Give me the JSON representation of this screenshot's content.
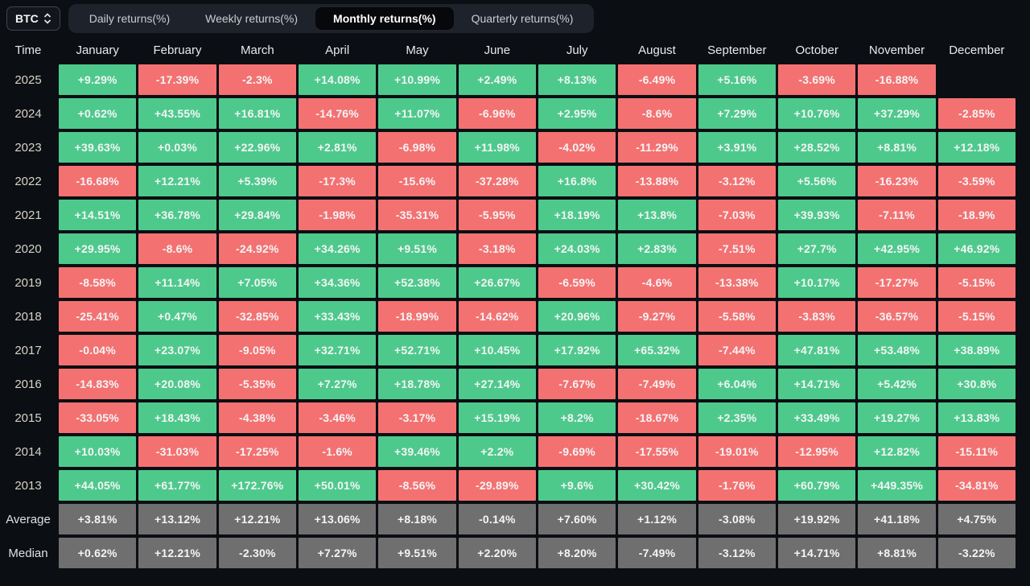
{
  "selector": {
    "label": "BTC"
  },
  "tabs": {
    "active_index": 2,
    "items": [
      {
        "id": "daily",
        "label": "Daily returns(%)"
      },
      {
        "id": "weekly",
        "label": "Weekly returns(%)"
      },
      {
        "id": "monthly",
        "label": "Monthly returns(%)"
      },
      {
        "id": "quarterly",
        "label": "Quarterly returns(%)"
      }
    ]
  },
  "colors": {
    "background": "#0b0e13",
    "positive": "#4ec98c",
    "negative": "#f47171",
    "neutral": "#6f6f6f"
  },
  "chart_data": {
    "type": "heatmap",
    "title": "Monthly returns(%)",
    "time_header": "Time",
    "months": [
      "January",
      "February",
      "March",
      "April",
      "May",
      "June",
      "July",
      "August",
      "September",
      "October",
      "November",
      "December"
    ],
    "rows": [
      {
        "label": "2025",
        "type": "year",
        "cells": [
          [
            "+9.29%",
            "g"
          ],
          [
            "-17.39%",
            "r"
          ],
          [
            "-2.3%",
            "r"
          ],
          [
            "+14.08%",
            "g"
          ],
          [
            "+10.99%",
            "g"
          ],
          [
            "+2.49%",
            "g"
          ],
          [
            "+8.13%",
            "g"
          ],
          [
            "-6.49%",
            "r"
          ],
          [
            "+5.16%",
            "g"
          ],
          [
            "-3.69%",
            "r"
          ],
          [
            "-16.88%",
            "r"
          ],
          null
        ]
      },
      {
        "label": "2024",
        "type": "year",
        "cells": [
          [
            "+0.62%",
            "g"
          ],
          [
            "+43.55%",
            "g"
          ],
          [
            "+16.81%",
            "g"
          ],
          [
            "-14.76%",
            "r"
          ],
          [
            "+11.07%",
            "g"
          ],
          [
            "-6.96%",
            "r"
          ],
          [
            "+2.95%",
            "g"
          ],
          [
            "-8.6%",
            "r"
          ],
          [
            "+7.29%",
            "g"
          ],
          [
            "+10.76%",
            "g"
          ],
          [
            "+37.29%",
            "g"
          ],
          [
            "-2.85%",
            "r"
          ]
        ]
      },
      {
        "label": "2023",
        "type": "year",
        "cells": [
          [
            "+39.63%",
            "g"
          ],
          [
            "+0.03%",
            "g"
          ],
          [
            "+22.96%",
            "g"
          ],
          [
            "+2.81%",
            "g"
          ],
          [
            "-6.98%",
            "r"
          ],
          [
            "+11.98%",
            "g"
          ],
          [
            "-4.02%",
            "r"
          ],
          [
            "-11.29%",
            "r"
          ],
          [
            "+3.91%",
            "g"
          ],
          [
            "+28.52%",
            "g"
          ],
          [
            "+8.81%",
            "g"
          ],
          [
            "+12.18%",
            "g"
          ]
        ]
      },
      {
        "label": "2022",
        "type": "year",
        "cells": [
          [
            "-16.68%",
            "r"
          ],
          [
            "+12.21%",
            "g"
          ],
          [
            "+5.39%",
            "g"
          ],
          [
            "-17.3%",
            "r"
          ],
          [
            "-15.6%",
            "r"
          ],
          [
            "-37.28%",
            "r"
          ],
          [
            "+16.8%",
            "g"
          ],
          [
            "-13.88%",
            "r"
          ],
          [
            "-3.12%",
            "r"
          ],
          [
            "+5.56%",
            "g"
          ],
          [
            "-16.23%",
            "r"
          ],
          [
            "-3.59%",
            "r"
          ]
        ]
      },
      {
        "label": "2021",
        "type": "year",
        "cells": [
          [
            "+14.51%",
            "g"
          ],
          [
            "+36.78%",
            "g"
          ],
          [
            "+29.84%",
            "g"
          ],
          [
            "-1.98%",
            "r"
          ],
          [
            "-35.31%",
            "r"
          ],
          [
            "-5.95%",
            "r"
          ],
          [
            "+18.19%",
            "g"
          ],
          [
            "+13.8%",
            "g"
          ],
          [
            "-7.03%",
            "r"
          ],
          [
            "+39.93%",
            "g"
          ],
          [
            "-7.11%",
            "r"
          ],
          [
            "-18.9%",
            "r"
          ]
        ]
      },
      {
        "label": "2020",
        "type": "year",
        "cells": [
          [
            "+29.95%",
            "g"
          ],
          [
            "-8.6%",
            "r"
          ],
          [
            "-24.92%",
            "r"
          ],
          [
            "+34.26%",
            "g"
          ],
          [
            "+9.51%",
            "g"
          ],
          [
            "-3.18%",
            "r"
          ],
          [
            "+24.03%",
            "g"
          ],
          [
            "+2.83%",
            "g"
          ],
          [
            "-7.51%",
            "r"
          ],
          [
            "+27.7%",
            "g"
          ],
          [
            "+42.95%",
            "g"
          ],
          [
            "+46.92%",
            "g"
          ]
        ]
      },
      {
        "label": "2019",
        "type": "year",
        "cells": [
          [
            "-8.58%",
            "r"
          ],
          [
            "+11.14%",
            "g"
          ],
          [
            "+7.05%",
            "g"
          ],
          [
            "+34.36%",
            "g"
          ],
          [
            "+52.38%",
            "g"
          ],
          [
            "+26.67%",
            "g"
          ],
          [
            "-6.59%",
            "r"
          ],
          [
            "-4.6%",
            "r"
          ],
          [
            "-13.38%",
            "r"
          ],
          [
            "+10.17%",
            "g"
          ],
          [
            "-17.27%",
            "r"
          ],
          [
            "-5.15%",
            "r"
          ]
        ]
      },
      {
        "label": "2018",
        "type": "year",
        "cells": [
          [
            "-25.41%",
            "r"
          ],
          [
            "+0.47%",
            "g"
          ],
          [
            "-32.85%",
            "r"
          ],
          [
            "+33.43%",
            "g"
          ],
          [
            "-18.99%",
            "r"
          ],
          [
            "-14.62%",
            "r"
          ],
          [
            "+20.96%",
            "g"
          ],
          [
            "-9.27%",
            "r"
          ],
          [
            "-5.58%",
            "r"
          ],
          [
            "-3.83%",
            "r"
          ],
          [
            "-36.57%",
            "r"
          ],
          [
            "-5.15%",
            "r"
          ]
        ]
      },
      {
        "label": "2017",
        "type": "year",
        "cells": [
          [
            "-0.04%",
            "r"
          ],
          [
            "+23.07%",
            "g"
          ],
          [
            "-9.05%",
            "r"
          ],
          [
            "+32.71%",
            "g"
          ],
          [
            "+52.71%",
            "g"
          ],
          [
            "+10.45%",
            "g"
          ],
          [
            "+17.92%",
            "g"
          ],
          [
            "+65.32%",
            "g"
          ],
          [
            "-7.44%",
            "r"
          ],
          [
            "+47.81%",
            "g"
          ],
          [
            "+53.48%",
            "g"
          ],
          [
            "+38.89%",
            "g"
          ]
        ]
      },
      {
        "label": "2016",
        "type": "year",
        "cells": [
          [
            "-14.83%",
            "r"
          ],
          [
            "+20.08%",
            "g"
          ],
          [
            "-5.35%",
            "r"
          ],
          [
            "+7.27%",
            "g"
          ],
          [
            "+18.78%",
            "g"
          ],
          [
            "+27.14%",
            "g"
          ],
          [
            "-7.67%",
            "r"
          ],
          [
            "-7.49%",
            "r"
          ],
          [
            "+6.04%",
            "g"
          ],
          [
            "+14.71%",
            "g"
          ],
          [
            "+5.42%",
            "g"
          ],
          [
            "+30.8%",
            "g"
          ]
        ]
      },
      {
        "label": "2015",
        "type": "year",
        "cells": [
          [
            "-33.05%",
            "r"
          ],
          [
            "+18.43%",
            "g"
          ],
          [
            "-4.38%",
            "r"
          ],
          [
            "-3.46%",
            "r"
          ],
          [
            "-3.17%",
            "r"
          ],
          [
            "+15.19%",
            "g"
          ],
          [
            "+8.2%",
            "g"
          ],
          [
            "-18.67%",
            "r"
          ],
          [
            "+2.35%",
            "g"
          ],
          [
            "+33.49%",
            "g"
          ],
          [
            "+19.27%",
            "g"
          ],
          [
            "+13.83%",
            "g"
          ]
        ]
      },
      {
        "label": "2014",
        "type": "year",
        "cells": [
          [
            "+10.03%",
            "g"
          ],
          [
            "-31.03%",
            "r"
          ],
          [
            "-17.25%",
            "r"
          ],
          [
            "-1.6%",
            "r"
          ],
          [
            "+39.46%",
            "g"
          ],
          [
            "+2.2%",
            "g"
          ],
          [
            "-9.69%",
            "r"
          ],
          [
            "-17.55%",
            "r"
          ],
          [
            "-19.01%",
            "r"
          ],
          [
            "-12.95%",
            "r"
          ],
          [
            "+12.82%",
            "g"
          ],
          [
            "-15.11%",
            "r"
          ]
        ]
      },
      {
        "label": "2013",
        "type": "year",
        "cells": [
          [
            "+44.05%",
            "g"
          ],
          [
            "+61.77%",
            "g"
          ],
          [
            "+172.76%",
            "g"
          ],
          [
            "+50.01%",
            "g"
          ],
          [
            "-8.56%",
            "r"
          ],
          [
            "-29.89%",
            "r"
          ],
          [
            "+9.6%",
            "g"
          ],
          [
            "+30.42%",
            "g"
          ],
          [
            "-1.76%",
            "r"
          ],
          [
            "+60.79%",
            "g"
          ],
          [
            "+449.35%",
            "g"
          ],
          [
            "-34.81%",
            "r"
          ]
        ]
      },
      {
        "label": "Average",
        "type": "stat",
        "cells": [
          [
            "+3.81%",
            "n"
          ],
          [
            "+13.12%",
            "n"
          ],
          [
            "+12.21%",
            "n"
          ],
          [
            "+13.06%",
            "n"
          ],
          [
            "+8.18%",
            "n"
          ],
          [
            "-0.14%",
            "n"
          ],
          [
            "+7.60%",
            "n"
          ],
          [
            "+1.12%",
            "n"
          ],
          [
            "-3.08%",
            "n"
          ],
          [
            "+19.92%",
            "n"
          ],
          [
            "+41.18%",
            "n"
          ],
          [
            "+4.75%",
            "n"
          ]
        ]
      },
      {
        "label": "Median",
        "type": "stat",
        "cells": [
          [
            "+0.62%",
            "n"
          ],
          [
            "+12.21%",
            "n"
          ],
          [
            "-2.30%",
            "n"
          ],
          [
            "+7.27%",
            "n"
          ],
          [
            "+9.51%",
            "n"
          ],
          [
            "+2.20%",
            "n"
          ],
          [
            "+8.20%",
            "n"
          ],
          [
            "-7.49%",
            "n"
          ],
          [
            "-3.12%",
            "n"
          ],
          [
            "+14.71%",
            "n"
          ],
          [
            "+8.81%",
            "n"
          ],
          [
            "-3.22%",
            "n"
          ]
        ]
      }
    ],
    "legend": {
      "positive_color": "#4ec98c",
      "negative_color": "#f47171",
      "neutral_color": "#6f6f6f"
    }
  }
}
